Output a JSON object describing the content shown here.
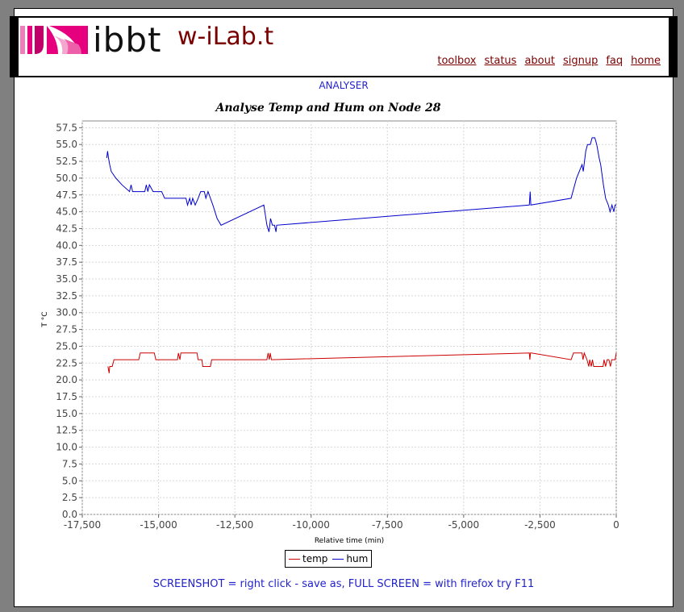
{
  "header": {
    "logo_text": "ibbt",
    "site_name": "w-iLab.t",
    "nav": [
      "toolbox",
      "status",
      "about",
      "signup",
      "faq",
      "home"
    ]
  },
  "page_label": "ANALYSER",
  "footer_note": "SCREENSHOT = right click - save as, FULL SCREEN = with firefox try F11",
  "colors": {
    "background": "#808080",
    "nav_link": "#7a0000",
    "accent_text": "#2222cc",
    "logo_pink": "#e6007e",
    "temp": "#cc0000",
    "hum": "#0000cc"
  },
  "chart_data": {
    "type": "line",
    "title": "Analyse Temp and Hum on Node 28",
    "xlabel": "Relative time (min)",
    "ylabel": "T °C",
    "xlim": [
      -17500,
      0
    ],
    "ylim": [
      0,
      58.5
    ],
    "xticks": [
      -17500,
      -15000,
      -12500,
      -10000,
      -7500,
      -5000,
      -2500,
      0
    ],
    "xtick_labels": [
      "-17,500",
      "-15,000",
      "-12,500",
      "-10,000",
      "-7,500",
      "-5,000",
      "-2,500",
      "0"
    ],
    "yticks": [
      0,
      2.5,
      5,
      7.5,
      10,
      12.5,
      15,
      17.5,
      20,
      22.5,
      25,
      27.5,
      30,
      32.5,
      35,
      37.5,
      40,
      42.5,
      45,
      47.5,
      50,
      52.5,
      55,
      57.5
    ],
    "grid": true,
    "legend_position": "bottom",
    "series": [
      {
        "name": "temp",
        "color": "#cc0000",
        "points": [
          [
            -16660,
            22
          ],
          [
            -16620,
            21
          ],
          [
            -16600,
            22
          ],
          [
            -16520,
            22
          ],
          [
            -16460,
            23
          ],
          [
            -15650,
            23
          ],
          [
            -15600,
            24
          ],
          [
            -15140,
            24
          ],
          [
            -15090,
            23
          ],
          [
            -14380,
            23
          ],
          [
            -14350,
            24
          ],
          [
            -14300,
            23
          ],
          [
            -14270,
            24
          ],
          [
            -13740,
            24
          ],
          [
            -13700,
            23
          ],
          [
            -13580,
            23
          ],
          [
            -13550,
            22
          ],
          [
            -13300,
            22
          ],
          [
            -13260,
            23
          ],
          [
            -11450,
            23
          ],
          [
            -11410,
            24
          ],
          [
            -11370,
            23
          ],
          [
            -11340,
            24
          ],
          [
            -11300,
            23
          ],
          [
            -2850,
            24
          ],
          [
            -2830,
            23
          ],
          [
            -2810,
            24
          ],
          [
            -2780,
            24
          ],
          [
            -1480,
            23
          ],
          [
            -1400,
            24
          ],
          [
            -1120,
            24
          ],
          [
            -1090,
            23
          ],
          [
            -1050,
            24
          ],
          [
            -960,
            23
          ],
          [
            -900,
            22
          ],
          [
            -870,
            23
          ],
          [
            -820,
            22
          ],
          [
            -780,
            23
          ],
          [
            -740,
            22
          ],
          [
            -480,
            22
          ],
          [
            -430,
            22
          ],
          [
            -400,
            23
          ],
          [
            -350,
            22
          ],
          [
            -300,
            23
          ],
          [
            -240,
            23
          ],
          [
            -190,
            22
          ],
          [
            -150,
            23
          ],
          [
            -40,
            23
          ],
          [
            0,
            24
          ]
        ]
      },
      {
        "name": "hum",
        "color": "#0000cc",
        "points": [
          [
            -16700,
            53
          ],
          [
            -16670,
            54
          ],
          [
            -16640,
            53
          ],
          [
            -16600,
            52
          ],
          [
            -16550,
            51
          ],
          [
            -16400,
            50
          ],
          [
            -16200,
            49
          ],
          [
            -15950,
            48
          ],
          [
            -15900,
            49
          ],
          [
            -15850,
            48
          ],
          [
            -15450,
            48
          ],
          [
            -15400,
            49
          ],
          [
            -15350,
            48
          ],
          [
            -15300,
            49
          ],
          [
            -15180,
            48
          ],
          [
            -14900,
            48
          ],
          [
            -14800,
            47
          ],
          [
            -14100,
            47
          ],
          [
            -14050,
            46
          ],
          [
            -13980,
            47
          ],
          [
            -13930,
            46
          ],
          [
            -13880,
            47
          ],
          [
            -13800,
            46
          ],
          [
            -13700,
            47
          ],
          [
            -13620,
            48
          ],
          [
            -13500,
            48
          ],
          [
            -13450,
            47
          ],
          [
            -13380,
            48
          ],
          [
            -13300,
            47
          ],
          [
            -13220,
            46
          ],
          [
            -13080,
            44
          ],
          [
            -12950,
            43
          ],
          [
            -11550,
            46
          ],
          [
            -11450,
            43
          ],
          [
            -11380,
            42
          ],
          [
            -11330,
            44
          ],
          [
            -11270,
            43
          ],
          [
            -11200,
            43
          ],
          [
            -11150,
            42
          ],
          [
            -11130,
            43
          ],
          [
            -2850,
            46
          ],
          [
            -2820,
            48
          ],
          [
            -2800,
            46
          ],
          [
            -1480,
            47
          ],
          [
            -1300,
            50
          ],
          [
            -1120,
            52
          ],
          [
            -1080,
            51
          ],
          [
            -1000,
            54
          ],
          [
            -940,
            55
          ],
          [
            -850,
            55
          ],
          [
            -790,
            56
          ],
          [
            -700,
            56
          ],
          [
            -640,
            55
          ],
          [
            -560,
            53
          ],
          [
            -510,
            52
          ],
          [
            -420,
            49
          ],
          [
            -350,
            47
          ],
          [
            -260,
            46
          ],
          [
            -200,
            45
          ],
          [
            -140,
            46
          ],
          [
            -80,
            45
          ],
          [
            -40,
            46
          ],
          [
            0,
            46
          ]
        ]
      }
    ]
  }
}
